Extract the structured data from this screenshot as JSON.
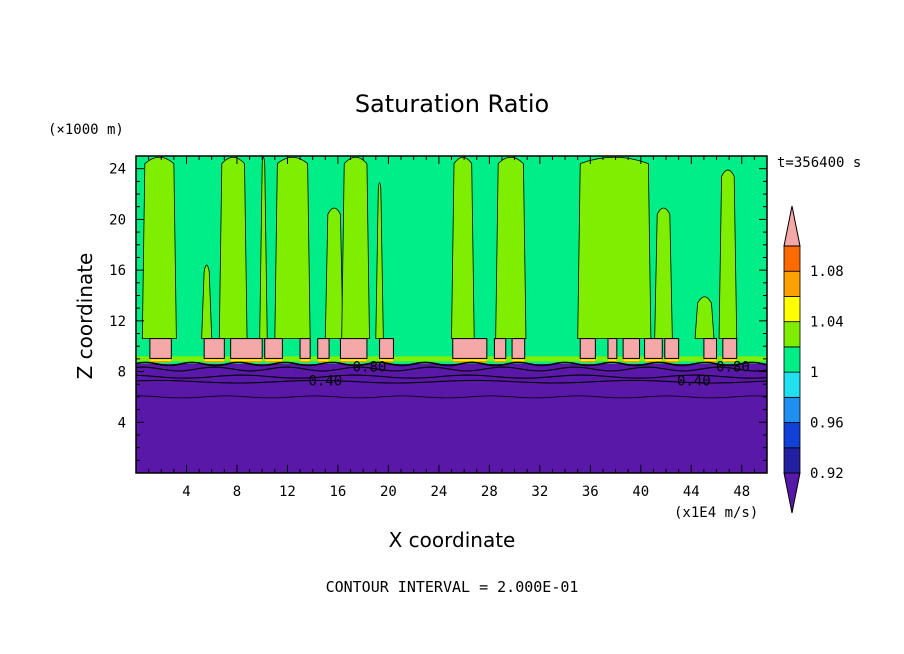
{
  "chart_data": {
    "type": "heatmap",
    "title": "Saturation Ratio",
    "xlabel": "X coordinate",
    "ylabel": "Z coordinate",
    "x_unit": "(x1E4 m/s)",
    "y_unit": "(×1000 m)",
    "time_label": "t=356400 s",
    "footer": "CONTOUR INTERVAL = 2.000E-01",
    "xlim": [
      0,
      50
    ],
    "ylim": [
      0,
      25
    ],
    "x_ticks": [
      4,
      8,
      12,
      16,
      20,
      24,
      28,
      32,
      36,
      40,
      44,
      48
    ],
    "y_ticks": [
      4,
      8,
      12,
      16,
      20,
      24
    ],
    "colorbar": {
      "levels": [
        0.92,
        0.94,
        0.96,
        0.98,
        1.0,
        1.02,
        1.04,
        1.06,
        1.08,
        1.1
      ],
      "tick_labels": [
        "0.92",
        "0.96",
        "1",
        "1.04",
        "1.08"
      ],
      "tick_values": [
        0.92,
        0.96,
        1.0,
        1.04,
        1.08
      ],
      "colors": [
        "#5a18a8",
        "#2020a0",
        "#1040d8",
        "#2090f0",
        "#20e0f0",
        "#00ee88",
        "#80ee00",
        "#ffff00",
        "#ffa000",
        "#ff6a00",
        "#ff2020",
        "#f4a8a8"
      ]
    },
    "contour_labels": [
      {
        "text": "0.80",
        "x": 18.5,
        "y": 8.4
      },
      {
        "text": "0.40",
        "x": 15.0,
        "y": 7.3
      },
      {
        "text": "0.40",
        "x": 44.2,
        "y": 7.3
      },
      {
        "text": "0.80",
        "x": 47.3,
        "y": 8.4
      }
    ],
    "regions": {
      "dry_layer_top": 6.0,
      "transition_top": 8.6,
      "cloud_base": 8.8,
      "cloud_top": 10.6,
      "domain_top": 25.0
    },
    "supersaturated_cells": [
      [
        1.1,
        2.8
      ],
      [
        5.4,
        7.0
      ],
      [
        7.5,
        10.0
      ],
      [
        10.2,
        11.6
      ],
      [
        13.0,
        13.8
      ],
      [
        14.4,
        15.3
      ],
      [
        16.2,
        18.3
      ],
      [
        19.3,
        20.4
      ],
      [
        25.1,
        27.8
      ],
      [
        28.4,
        29.3
      ],
      [
        29.8,
        30.8
      ],
      [
        35.2,
        36.4
      ],
      [
        37.4,
        38.1
      ],
      [
        38.6,
        39.9
      ],
      [
        40.3,
        41.7
      ],
      [
        41.9,
        43.0
      ],
      [
        45.0,
        46.0
      ],
      [
        46.5,
        47.6
      ]
    ],
    "humid_columns": [
      [
        0.5,
        3.2,
        25.0
      ],
      [
        5.2,
        6.0,
        16.5
      ],
      [
        6.6,
        8.8,
        25.0
      ],
      [
        9.8,
        10.4,
        25.0
      ],
      [
        11.0,
        13.8,
        25.0
      ],
      [
        15.0,
        16.4,
        21.0
      ],
      [
        16.3,
        18.5,
        25.0
      ],
      [
        19.0,
        19.6,
        23.0
      ],
      [
        25.0,
        26.8,
        25.0
      ],
      [
        28.5,
        30.9,
        25.0
      ],
      [
        35.0,
        40.8,
        25.0
      ],
      [
        41.1,
        42.5,
        21.0
      ],
      [
        44.3,
        45.8,
        14.0
      ],
      [
        46.2,
        47.6,
        24.0
      ]
    ]
  }
}
